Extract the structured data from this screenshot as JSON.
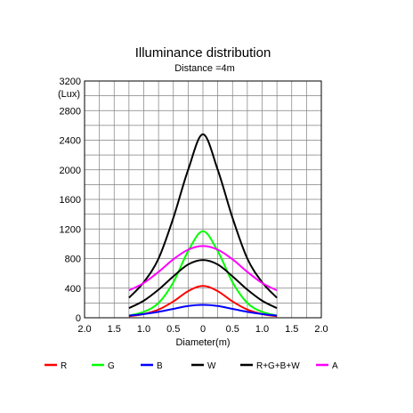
{
  "chart_data": {
    "type": "line",
    "title": "Illuminance distribution",
    "subtitle": "Distance =4m",
    "unit_label": "(Lux)",
    "xlabel": "Diameter(m)",
    "xlim": [
      -2.0,
      2.0
    ],
    "ylim": [
      0,
      3200
    ],
    "x_ticks": [
      -2.0,
      -1.5,
      -1.0,
      -0.5,
      0,
      0.5,
      1.0,
      1.5,
      2.0
    ],
    "x_tick_labels": [
      "2.0",
      "1.5",
      "1.0",
      "0.5",
      "0",
      "0.5",
      "1.0",
      "1.5",
      "2.0"
    ],
    "y_ticks": [
      0,
      400,
      800,
      1200,
      1600,
      2000,
      2400,
      2800,
      3200
    ],
    "y_tick_labels": [
      "0",
      "400",
      "800",
      "1200",
      "1600",
      "2000",
      "2400",
      "2800",
      "3200"
    ],
    "grid": true,
    "legend_position": "bottom",
    "series": [
      {
        "name": "R",
        "color": "#ff0000",
        "x": [
          -1.25,
          -1.0,
          -0.75,
          -0.5,
          -0.25,
          0,
          0.25,
          0.5,
          0.75,
          1.0,
          1.25
        ],
        "y": [
          20,
          50,
          110,
          220,
          360,
          430,
          360,
          220,
          110,
          50,
          20
        ]
      },
      {
        "name": "G",
        "color": "#00ff00",
        "x": [
          -1.25,
          -1.0,
          -0.75,
          -0.5,
          -0.25,
          0,
          0.25,
          0.5,
          0.75,
          1.0,
          1.25
        ],
        "y": [
          30,
          80,
          200,
          480,
          900,
          1170,
          900,
          480,
          200,
          80,
          30
        ]
      },
      {
        "name": "B",
        "color": "#0000ff",
        "x": [
          -1.25,
          -1.0,
          -0.75,
          -0.5,
          -0.25,
          0,
          0.25,
          0.5,
          0.75,
          1.0,
          1.25
        ],
        "y": [
          30,
          50,
          80,
          120,
          160,
          175,
          160,
          120,
          80,
          50,
          30
        ]
      },
      {
        "name": "W",
        "color": "#000000",
        "x": [
          -1.25,
          -1.0,
          -0.75,
          -0.5,
          -0.25,
          0,
          0.25,
          0.5,
          0.75,
          1.0,
          1.25
        ],
        "y": [
          130,
          230,
          380,
          560,
          720,
          780,
          720,
          560,
          380,
          230,
          130
        ]
      },
      {
        "name": "R+G+B+W",
        "color": "#000000",
        "x": [
          -1.25,
          -1.0,
          -0.75,
          -0.5,
          -0.25,
          0,
          0.25,
          0.5,
          0.75,
          1.0,
          1.25
        ],
        "y": [
          270,
          480,
          800,
          1350,
          2000,
          2480,
          2000,
          1350,
          800,
          480,
          270
        ]
      },
      {
        "name": "A",
        "color": "#ff00ff",
        "x": [
          -1.25,
          -1.0,
          -0.75,
          -0.5,
          -0.25,
          0,
          0.25,
          0.5,
          0.75,
          1.0,
          1.25
        ],
        "y": [
          370,
          470,
          620,
          790,
          920,
          970,
          920,
          790,
          620,
          470,
          370
        ]
      }
    ]
  }
}
